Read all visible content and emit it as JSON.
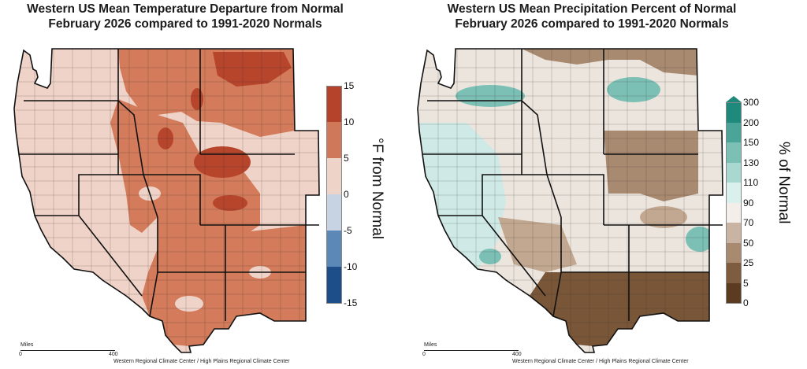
{
  "left_panel": {
    "title_line1": "Western US Mean Temperature Departure from Normal",
    "title_line2": "February 2026 compared to 1991-2020 Normals",
    "legend": {
      "unit": "°F from Normal",
      "ticks": [
        "15",
        "10",
        "5",
        "0",
        "-5",
        "-10",
        "-15"
      ],
      "colors": [
        "#b5432c",
        "#d0795a",
        "#edd3c8",
        "#c7d3e3",
        "#5c88b8",
        "#1d4e89"
      ]
    },
    "scale": {
      "label": "Miles",
      "start": "0",
      "end": "400"
    },
    "credit": "Western Regional Climate Center / High Plains Regional Climate Center"
  },
  "right_panel": {
    "title_line1": "Western US Mean Precipitation Percent of Normal",
    "title_line2": "February 2026 compared to 1991-2020 Normals",
    "legend": {
      "unit": "% of Normal",
      "ticks": [
        "300",
        "200",
        "150",
        "130",
        "110",
        "90",
        "70",
        "50",
        "25",
        "5",
        "0"
      ],
      "colors": [
        "#1f8a7c",
        "#4aa598",
        "#7cc0b5",
        "#a9d8d0",
        "#daf0ec",
        "#f3eeea",
        "#c9b4a3",
        "#a88a70",
        "#7d5c3f",
        "#5c3c20"
      ]
    },
    "scale": {
      "label": "Miles",
      "start": "0",
      "end": "400"
    },
    "credit": "Western Regional Climate Center / High Plains Regional Climate Center"
  },
  "colors": {
    "temp_base": "#f0d3c8",
    "temp_warm": "#d37b5a",
    "temp_hot": "#b6452c",
    "temp_very_hot": "#a3361f",
    "precip_base": "#ece5de",
    "precip_wet": "#cfeae6",
    "precip_teal": "#6fb7ab",
    "precip_dry": "#c3a891",
    "precip_drier": "#9b7a5f",
    "precip_driest": "#7a5638",
    "border": "#111111"
  }
}
